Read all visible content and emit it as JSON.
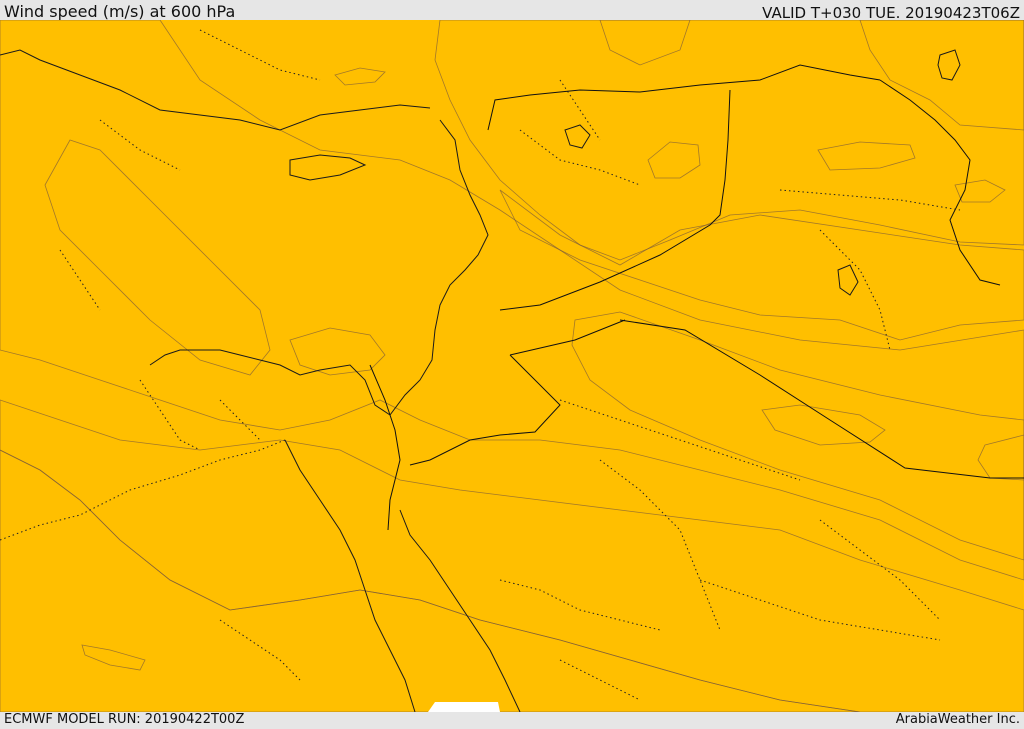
{
  "header": {
    "title": "Wind speed (m/s) at 600 hPa",
    "valid": "VALID T+030 TUE. 20190423T06Z"
  },
  "footer": {
    "model_run": "ECMWF MODEL RUN: 20190422T00Z",
    "provider": "ArabiaWeather Inc."
  },
  "colors": {
    "band_lightest": "#fde0b0",
    "band_yellow": "#ffff00",
    "band_gold": "#ffd700",
    "band_amber": "#ffbf00",
    "band_orange": "#ffa500",
    "band_dark_orange": "#ff8000",
    "band_red_orange": "#ff6010"
  }
}
